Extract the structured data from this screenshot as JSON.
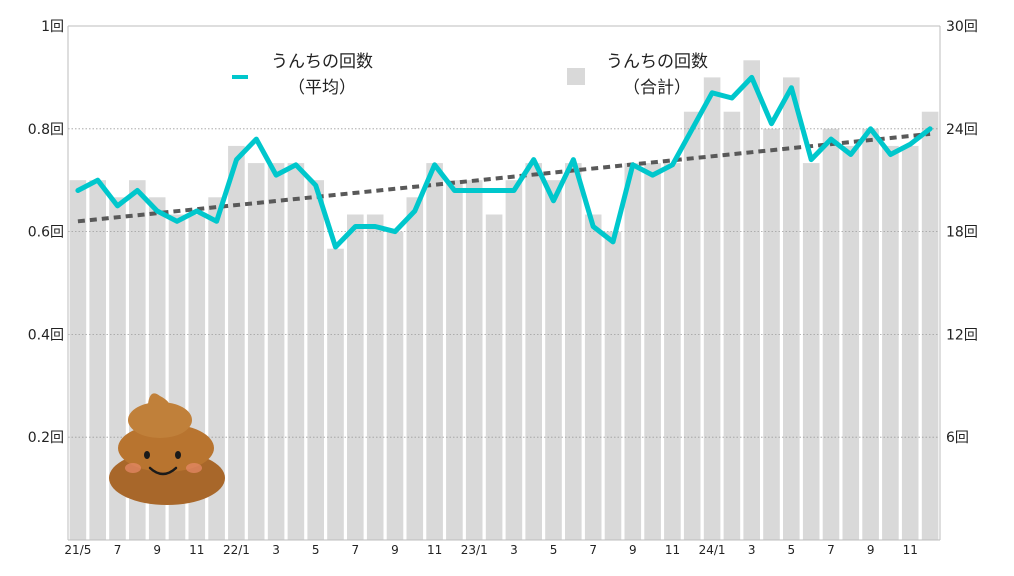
{
  "chart_data": {
    "type": "bar+line",
    "colors": {
      "bar": "#d9d9d9",
      "line": "#00c7cc",
      "trend": "#595959",
      "grid": "#9e9e9e"
    },
    "x_tick_labels": [
      "21/5",
      "7",
      "9",
      "11",
      "22/1",
      "3",
      "5",
      "7",
      "9",
      "11",
      "23/1",
      "3",
      "5",
      "7",
      "9",
      "11",
      "24/1",
      "3",
      "5",
      "7",
      "9",
      "11"
    ],
    "y_left": {
      "ticks": [
        "0.2回",
        "0.4回",
        "0.6回",
        "0.8回",
        "1回"
      ],
      "values": [
        0.2,
        0.4,
        0.6,
        0.8,
        1.0
      ],
      "range": [
        0,
        1
      ]
    },
    "y_right": {
      "ticks": [
        "6回",
        "12回",
        "18回",
        "24回",
        "30回"
      ],
      "values": [
        6,
        12,
        18,
        24,
        30
      ],
      "range": [
        0,
        30
      ]
    },
    "legend": {
      "line_label": [
        "うんちの回数",
        "（平均）"
      ],
      "bar_label": [
        "うんちの回数",
        "（合計）"
      ]
    },
    "series": [
      {
        "name": "うんちの回数（合計）",
        "axis": "right",
        "type": "bar",
        "values": [
          21,
          21,
          20,
          21,
          20,
          19,
          19,
          20,
          23,
          22,
          22,
          22,
          21,
          17,
          19,
          19,
          18,
          20,
          22,
          21,
          21,
          19,
          21,
          22,
          21,
          22,
          19,
          18,
          22,
          22,
          22,
          25,
          27,
          25,
          28,
          24,
          27,
          22,
          24,
          23,
          24,
          23,
          23,
          25
        ]
      },
      {
        "name": "うんちの回数（平均）",
        "axis": "left",
        "type": "line",
        "values": [
          0.68,
          0.7,
          0.65,
          0.68,
          0.64,
          0.62,
          0.64,
          0.62,
          0.74,
          0.78,
          0.71,
          0.73,
          0.69,
          0.57,
          0.61,
          0.61,
          0.6,
          0.64,
          0.73,
          0.68,
          0.68,
          0.68,
          0.68,
          0.74,
          0.66,
          0.74,
          0.61,
          0.58,
          0.73,
          0.71,
          0.73,
          0.8,
          0.87,
          0.86,
          0.9,
          0.81,
          0.88,
          0.74,
          0.78,
          0.75,
          0.8,
          0.75,
          0.77,
          0.8
        ]
      },
      {
        "name": "trend",
        "axis": "left",
        "type": "line",
        "dashed": true,
        "values_endpoints": [
          0.62,
          0.79
        ]
      }
    ],
    "grid": true
  }
}
